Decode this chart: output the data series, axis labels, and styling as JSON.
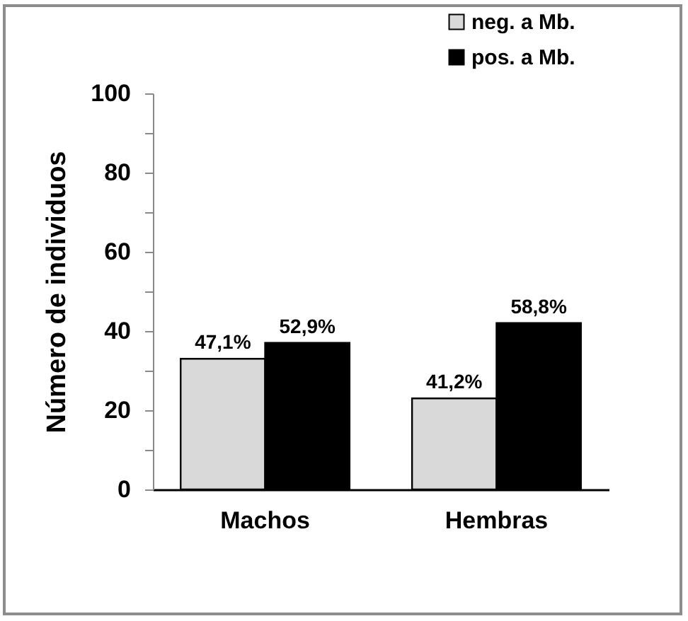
{
  "chart_data": {
    "type": "bar",
    "ylabel": "Número de individuos",
    "categories": [
      "Machos",
      "Hembras"
    ],
    "series": [
      {
        "name": "neg. a Mb.",
        "color": "#d9d9d9",
        "values": [
          33,
          23
        ]
      },
      {
        "name": "pos. a Mb.",
        "color": "#000000",
        "values": [
          37,
          42
        ]
      }
    ],
    "annotations": [
      {
        "text": "47,1%",
        "x": "Machos",
        "y": 33
      },
      {
        "text": "52,9%",
        "x": "Machos",
        "y": 37
      },
      {
        "text": "41,2%",
        "x": "Hembras",
        "y": 23
      },
      {
        "text": "58,8%",
        "x": "Hembras",
        "y": 42
      }
    ],
    "ylim": [
      0,
      100
    ],
    "yticks": [
      0,
      {
        "value": 10,
        "label": null
      },
      20,
      {
        "value": 30,
        "label": null
      },
      40,
      {
        "value": 50,
        "label": null
      },
      60,
      {
        "value": 70,
        "label": null
      },
      80,
      {
        "value": 90,
        "label": null
      },
      100
    ],
    "grid": false,
    "legend": "top right"
  }
}
